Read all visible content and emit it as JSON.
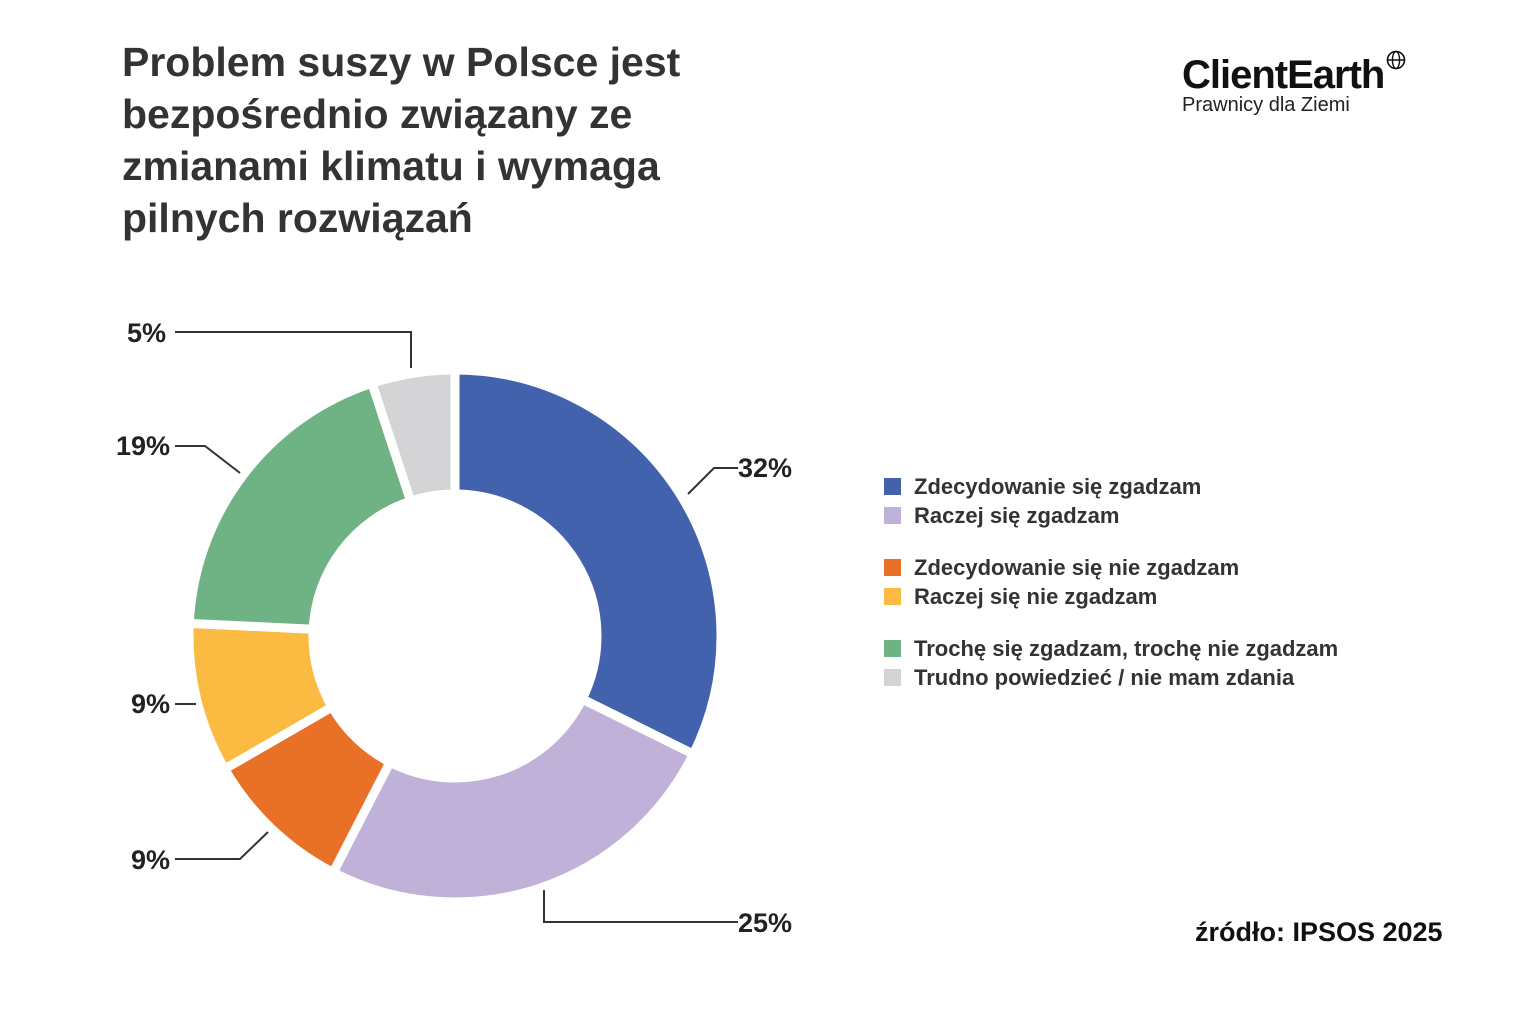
{
  "chart_data": {
    "type": "pie",
    "title": "Problem suszy w Polsce jest bezpośrednio związany ze zmianami klimatu i wymaga pilnych rozwiązań",
    "slices": [
      {
        "label": "Zdecydowanie się zgadzam",
        "value": 32,
        "display": "32%",
        "color": "#4262ad"
      },
      {
        "label": "Raczej się zgadzam",
        "value": 25,
        "display": "25%",
        "color": "#c0b1d8"
      },
      {
        "label": "Zdecydowanie się nie zgadzam",
        "value": 9,
        "display": "9%",
        "color": "#e87027"
      },
      {
        "label": "Raczej się nie zgadzam",
        "value": 9,
        "display": "9%",
        "color": "#fbba42"
      },
      {
        "label": "Trochę się zgadzam, trochę nie zgadzam",
        "value": 19,
        "display": "19%",
        "color": "#6fb284"
      },
      {
        "label": "Trudno powiedzieć / nie mam zdania",
        "value": 5,
        "display": "5%",
        "color": "#d4d4d6"
      }
    ],
    "legend_position": "right"
  },
  "logo": {
    "name": "ClientEarth",
    "tagline": "Prawnicy dla Ziemi"
  },
  "source": "źródło: IPSOS 2025"
}
